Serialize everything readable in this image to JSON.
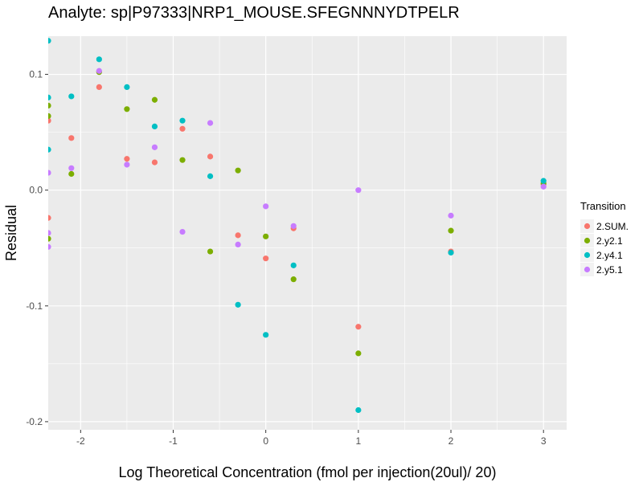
{
  "chart_data": {
    "type": "scatter",
    "title": "Analyte: sp|P97333|NRP1_MOUSE.SFEGNNNYDTPELR",
    "xlabel": "Log Theoretical Concentration (fmol per injection(20ul)/ 20)",
    "ylabel": "Residual",
    "xlim": [
      -2.35,
      3.25
    ],
    "ylim": [
      -0.207,
      0.133
    ],
    "x_ticks": [
      -2,
      -1,
      0,
      1,
      2,
      3
    ],
    "x_tick_labels": [
      "-2",
      "-1",
      "0",
      "1",
      "2",
      "3"
    ],
    "y_ticks": [
      -0.2,
      -0.1,
      0.0,
      0.1
    ],
    "y_tick_labels": [
      "-0.2",
      "-0.1",
      "0.0",
      "0.1"
    ],
    "grid": true,
    "legend": {
      "title": "Transition",
      "position": "right"
    },
    "series": [
      {
        "name": "2.SUM.",
        "color": "#F8766D",
        "points": [
          [
            -2.35,
            0.06
          ],
          [
            -2.35,
            -0.024
          ],
          [
            -2.1,
            0.045
          ],
          [
            -1.8,
            0.089
          ],
          [
            -1.5,
            0.027
          ],
          [
            -1.2,
            0.024
          ],
          [
            -0.9,
            0.053
          ],
          [
            -0.6,
            0.029
          ],
          [
            -0.3,
            -0.039
          ],
          [
            0,
            -0.059
          ],
          [
            0.3,
            -0.033
          ],
          [
            1,
            -0.118
          ],
          [
            2,
            -0.053
          ],
          [
            3,
            0.005
          ]
        ]
      },
      {
        "name": "2.y2.1",
        "color": "#7CAE00",
        "points": [
          [
            -2.35,
            0.073
          ],
          [
            -2.35,
            0.064
          ],
          [
            -2.35,
            -0.042
          ],
          [
            -2.1,
            0.014
          ],
          [
            -1.8,
            0.102
          ],
          [
            -1.5,
            0.07
          ],
          [
            -1.2,
            0.078
          ],
          [
            -0.9,
            0.026
          ],
          [
            -0.6,
            -0.053
          ],
          [
            -0.3,
            0.017
          ],
          [
            0,
            -0.04
          ],
          [
            0.3,
            -0.077
          ],
          [
            1,
            -0.141
          ],
          [
            2,
            -0.035
          ],
          [
            3,
            0.006
          ]
        ]
      },
      {
        "name": "2.y4.1",
        "color": "#00BFC4",
        "points": [
          [
            -2.35,
            0.129
          ],
          [
            -2.35,
            0.08
          ],
          [
            -2.35,
            0.035
          ],
          [
            -2.1,
            0.081
          ],
          [
            -1.8,
            0.113
          ],
          [
            -1.5,
            0.089
          ],
          [
            -1.2,
            0.055
          ],
          [
            -0.9,
            0.06
          ],
          [
            -0.6,
            0.012
          ],
          [
            -0.3,
            -0.099
          ],
          [
            0,
            -0.125
          ],
          [
            0.3,
            -0.065
          ],
          [
            1,
            -0.19
          ],
          [
            2,
            -0.054
          ],
          [
            3,
            0.008
          ]
        ]
      },
      {
        "name": "2.y5.1",
        "color": "#C77CFF",
        "points": [
          [
            -2.35,
            0.015
          ],
          [
            -2.35,
            -0.037
          ],
          [
            -2.35,
            -0.049
          ],
          [
            -2.1,
            0.019
          ],
          [
            -1.8,
            0.103
          ],
          [
            -1.5,
            0.022
          ],
          [
            -1.2,
            0.037
          ],
          [
            -0.9,
            -0.036
          ],
          [
            -0.6,
            0.058
          ],
          [
            -0.3,
            -0.047
          ],
          [
            0,
            -0.014
          ],
          [
            0.3,
            -0.031
          ],
          [
            1,
            0.0
          ],
          [
            2,
            -0.022
          ],
          [
            3,
            0.003
          ]
        ]
      }
    ]
  }
}
